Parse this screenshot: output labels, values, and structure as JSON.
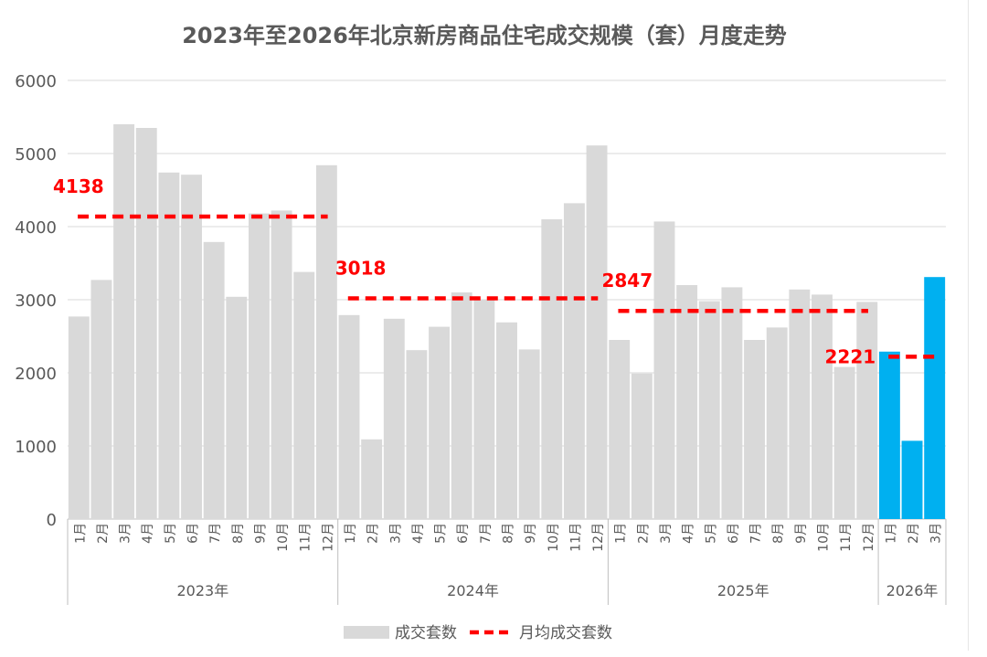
{
  "chart_data": {
    "type": "bar",
    "title": "2023年至2026年北京新房商品住宅成交规模（套）月度走势",
    "xlabel": "",
    "ylabel": "",
    "ylim": [
      0,
      6000
    ],
    "yticks": [
      0,
      1000,
      2000,
      3000,
      4000,
      5000,
      6000
    ],
    "grid": true,
    "legend_position": "bottom",
    "categories": [
      "1月",
      "2月",
      "3月",
      "4月",
      "5月",
      "6月",
      "7月",
      "8月",
      "9月",
      "10月",
      "11月",
      "12月",
      "1月",
      "2月",
      "3月",
      "4月",
      "5月",
      "6月",
      "7月",
      "8月",
      "9月",
      "10月",
      "11月",
      "12月",
      "1月",
      "2月",
      "3月",
      "4月",
      "5月",
      "6月",
      "7月",
      "8月",
      "9月",
      "10月",
      "11月",
      "12月",
      "1月",
      "2月",
      "3月"
    ],
    "groups": [
      {
        "label": "2023年",
        "count": 12
      },
      {
        "label": "2024年",
        "count": 12
      },
      {
        "label": "2025年",
        "count": 12
      },
      {
        "label": "2026年",
        "count": 3
      }
    ],
    "series": [
      {
        "name": "成交套数",
        "type": "bar",
        "color": "#d9d9d9",
        "highlight_color": "#00b0f0",
        "highlight_group": "2026年",
        "values": [
          2770,
          3270,
          5400,
          5350,
          4740,
          4710,
          3790,
          3040,
          4180,
          4220,
          3380,
          4840,
          2790,
          1090,
          2740,
          2310,
          2630,
          3100,
          3000,
          2690,
          2320,
          4100,
          4320,
          5110,
          2450,
          1990,
          4070,
          3200,
          2980,
          3170,
          2450,
          2620,
          3140,
          3070,
          2080,
          2970,
          2290,
          1070,
          3310
        ]
      },
      {
        "name": "月均成交套数",
        "type": "line",
        "style": "dashed",
        "color": "#ff0000",
        "segments": [
          {
            "group": "2023年",
            "value": 4138,
            "label": "4138"
          },
          {
            "group": "2024年",
            "value": 3018,
            "label": "3018"
          },
          {
            "group": "2025年",
            "value": 2847,
            "label": "2847"
          },
          {
            "group": "2026年",
            "value": 2221,
            "label": "2221"
          }
        ]
      }
    ]
  }
}
